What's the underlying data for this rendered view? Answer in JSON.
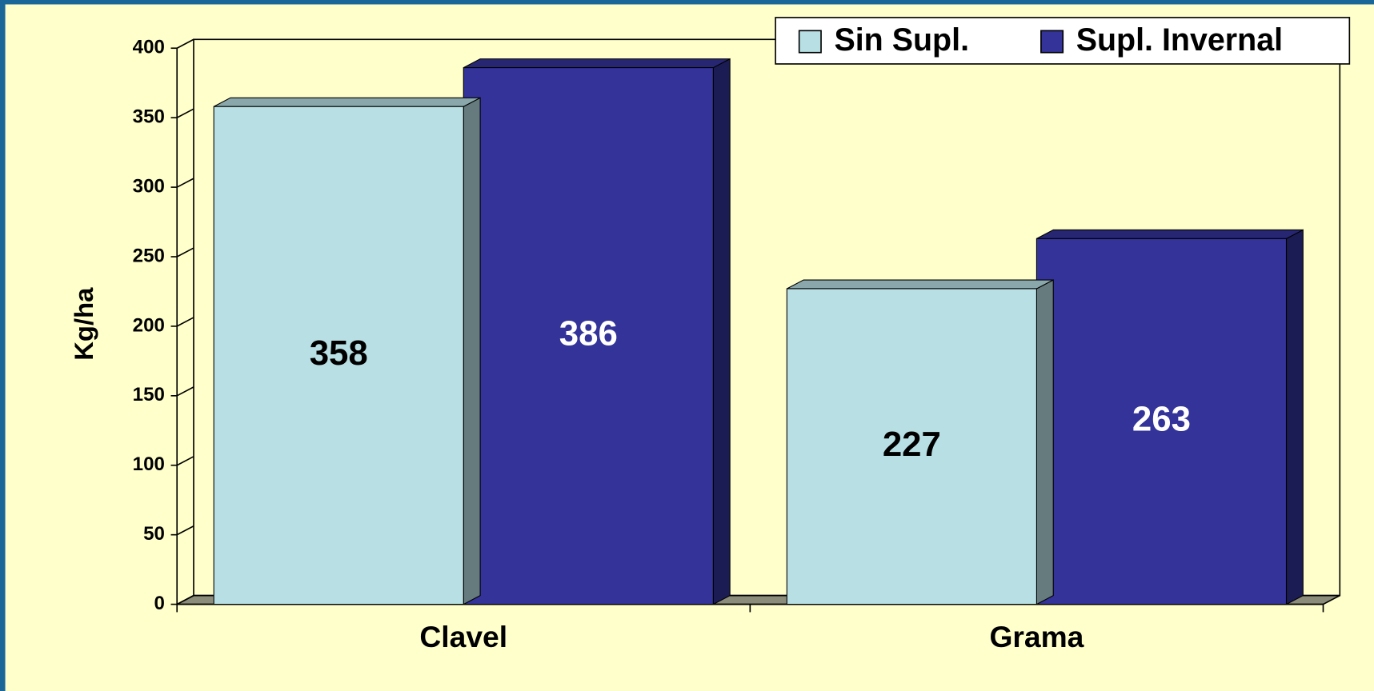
{
  "chart_data": {
    "type": "bar3d",
    "ylabel": "Kg/ha",
    "categories": [
      "Clavel",
      "Grama"
    ],
    "series": [
      {
        "name": "Sin Supl.",
        "color": "#b8e0e4",
        "values": [
          358,
          227
        ]
      },
      {
        "name": "Supl. Invernal",
        "color": "#333399",
        "values": [
          386,
          263
        ]
      }
    ],
    "ylim": [
      0,
      400
    ],
    "yticks": [
      0,
      50,
      100,
      150,
      200,
      250,
      300,
      350,
      400
    ],
    "legend": "top-right"
  }
}
